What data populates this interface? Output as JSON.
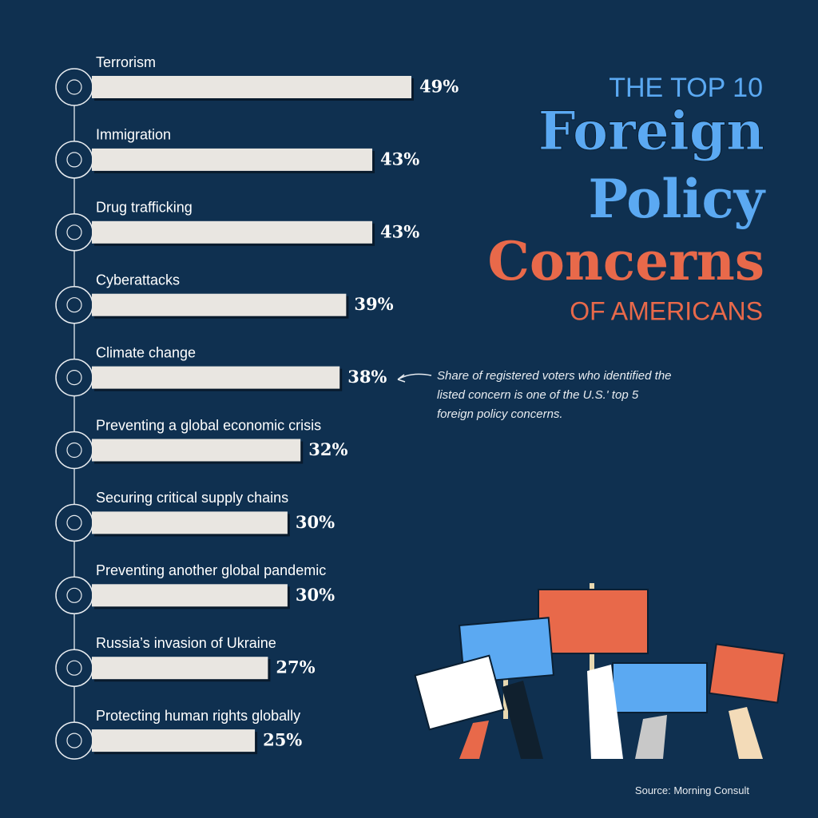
{
  "chart_data": {
    "type": "bar",
    "orientation": "horizontal",
    "title_line1": "THE TOP 10",
    "title_line2": "Foreign",
    "title_line3": "Policy",
    "title_line4": "Concerns",
    "title_line5": "OF AMERICANS",
    "categories": [
      "Terrorism",
      "Immigration",
      "Drug trafficking",
      "Cyberattacks",
      "Climate change",
      "Preventing a global economic crisis",
      "Securing critical supply chains",
      "Preventing another global pandemic",
      "Russia’s invasion of Ukraine",
      "Protecting human rights globally"
    ],
    "values": [
      49,
      43,
      43,
      39,
      38,
      32,
      30,
      30,
      27,
      25
    ],
    "value_labels": [
      "49%",
      "43%",
      "43%",
      "39%",
      "38%",
      "32%",
      "30%",
      "30%",
      "27%",
      "25%"
    ],
    "color": "#e9e6e1",
    "annotation": "Share of registered voters who identified the listed concern is one of the U.S.' top 5 foreign policy concerns.",
    "source": "Source: Morning Consult"
  }
}
